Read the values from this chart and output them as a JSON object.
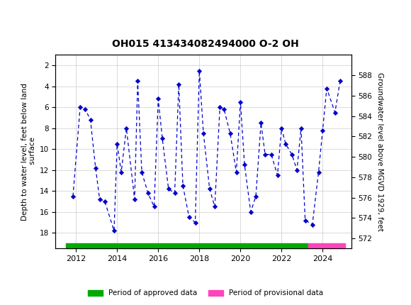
{
  "title": "OH015 413434082494000 O-2 OH",
  "ylabel_left": "Depth to water level, feet below land\n surface",
  "ylabel_right": "Groundwater level above MGVD 1929, feet",
  "ylim_left": [
    19.5,
    1.0
  ],
  "ylim_right": [
    571.0,
    590.0
  ],
  "yticks_left": [
    2,
    4,
    6,
    8,
    10,
    12,
    14,
    16,
    18
  ],
  "yticks_right": [
    572,
    574,
    576,
    578,
    580,
    582,
    584,
    586,
    588
  ],
  "header_color": "#1a6e3c",
  "line_color": "#0000cc",
  "marker_color": "#0000cc",
  "bg_color": "#ffffff",
  "grid_color": "#cccccc",
  "approved_color": "#00aa00",
  "provisional_color": "#ff44bb",
  "approved_start": 2011.5,
  "approved_end": 2023.3,
  "provisional_start": 2023.3,
  "provisional_end": 2025.1,
  "xlim": [
    2011.0,
    2025.4
  ],
  "xticks": [
    2012,
    2014,
    2016,
    2018,
    2020,
    2022,
    2024
  ],
  "data_x": [
    2011.85,
    2012.2,
    2012.45,
    2012.7,
    2012.95,
    2013.15,
    2013.4,
    2013.85,
    2014.0,
    2014.2,
    2014.45,
    2014.85,
    2015.0,
    2015.2,
    2015.5,
    2015.8,
    2016.0,
    2016.2,
    2016.5,
    2016.8,
    2017.0,
    2017.2,
    2017.5,
    2017.8,
    2018.0,
    2018.2,
    2018.5,
    2018.75,
    2019.0,
    2019.2,
    2019.5,
    2019.8,
    2020.0,
    2020.2,
    2020.5,
    2020.75,
    2021.0,
    2021.2,
    2021.5,
    2021.8,
    2022.0,
    2022.2,
    2022.5,
    2022.75,
    2022.95,
    2023.15,
    2023.5,
    2023.8,
    2024.0,
    2024.2,
    2024.6,
    2024.85
  ],
  "data_y": [
    14.5,
    6.0,
    6.2,
    7.2,
    11.8,
    14.8,
    15.0,
    17.8,
    9.5,
    12.2,
    8.0,
    14.8,
    3.5,
    12.2,
    14.2,
    15.5,
    5.2,
    9.0,
    13.8,
    14.2,
    3.8,
    13.5,
    16.5,
    17.0,
    2.5,
    8.5,
    13.8,
    15.5,
    6.0,
    6.2,
    8.5,
    12.2,
    5.5,
    11.5,
    16.0,
    14.5,
    7.5,
    10.5,
    10.5,
    12.5,
    8.0,
    9.5,
    10.5,
    12.0,
    8.0,
    16.8,
    17.2,
    12.2,
    8.2,
    4.2,
    6.5,
    3.5
  ]
}
